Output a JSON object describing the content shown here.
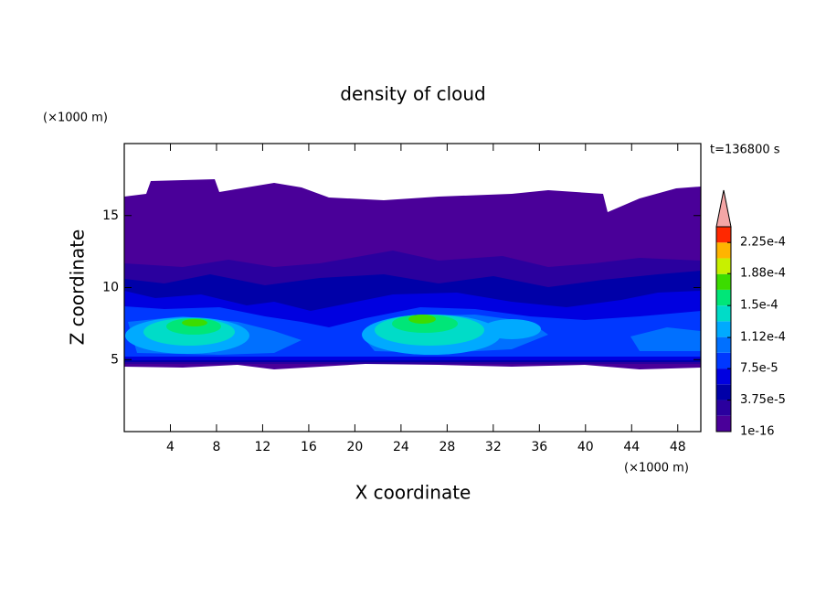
{
  "chart_data": {
    "type": "contour",
    "title": "density of cloud",
    "x_label": "X coordinate",
    "y_label": "Z coordinate",
    "x_unit": "(×1000 m)",
    "y_unit": "(×1000 m)",
    "time_label": "t=136800 s",
    "xlim": [
      0,
      50
    ],
    "ylim": [
      0,
      20
    ],
    "xticks": [
      4,
      8,
      12,
      16,
      20,
      24,
      28,
      32,
      36,
      40,
      44,
      48
    ],
    "yticks": [
      5,
      10,
      15
    ],
    "colorbar": {
      "levels": [
        1e-16,
        1.875e-05,
        3.75e-05,
        5.625e-05,
        7.5e-05,
        9.375e-05,
        0.0001125,
        0.00013125,
        0.00015,
        0.00016875,
        0.0001875,
        0.00020625,
        0.000225,
        0.00024375
      ],
      "colors": [
        "#4a0099",
        "#2a009e",
        "#0000a8",
        "#0000e0",
        "#0038ff",
        "#0070ff",
        "#00aaff",
        "#00dcc8",
        "#00e678",
        "#3cdc00",
        "#c8f000",
        "#ffb400",
        "#ff2800"
      ],
      "extend": "max",
      "over_color": "#f4a6a6",
      "ticks": [
        {
          "value": 1e-16,
          "label": "1e-16"
        },
        {
          "value": 3.75e-05,
          "label": "3.75e-5"
        },
        {
          "value": 7.5e-05,
          "label": "7.5e-5"
        },
        {
          "value": 0.000112,
          "label": "1.12e-4"
        },
        {
          "value": 0.00015,
          "label": "1.5e-4"
        },
        {
          "value": 0.000188,
          "label": "1.88e-4"
        },
        {
          "value": 0.000225,
          "label": "2.25e-4"
        }
      ]
    }
  }
}
